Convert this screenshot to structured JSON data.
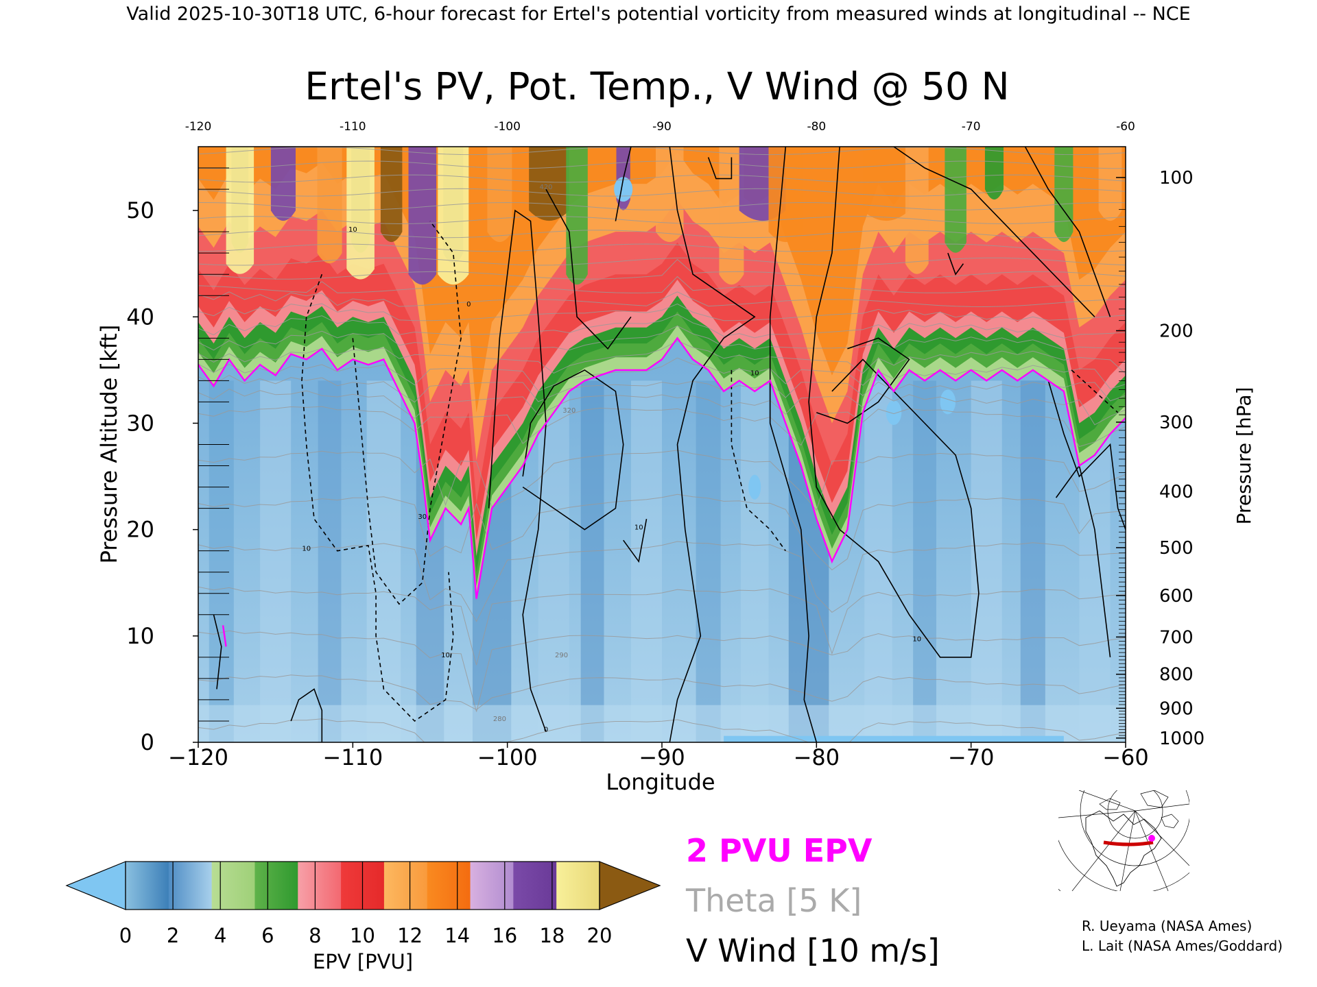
{
  "header_text": "Valid 2025-10-30T18 UTC, 6-hour forecast for Ertel's potential vorticity from measured winds at longitudinal -- NCE",
  "chart_data": {
    "type": "heatmap",
    "title": "Ertel's PV, Pot. Temp., V Wind @ 50 N",
    "xlabel": "Longitude",
    "ylabel_left": "Pressure Altitude [kft]",
    "ylabel_right": "Pressure [hPa]",
    "xlim": [
      -120,
      -60
    ],
    "ylim": [
      0,
      56
    ],
    "x_ticks": [
      -120,
      -110,
      -100,
      -90,
      -80,
      -70,
      -60
    ],
    "x_tick_labels": [
      "−120",
      "−110",
      "−100",
      "−90",
      "−80",
      "−70",
      "−60"
    ],
    "top_x_tick_labels": [
      "-120",
      "-110",
      "-100",
      "-90",
      "-80",
      "-70",
      "-60"
    ],
    "y_left_ticks": [
      0,
      10,
      20,
      30,
      40,
      50
    ],
    "y_right": [
      {
        "hPa": 100,
        "kft": 53.1,
        "label": "100"
      },
      {
        "hPa": 200,
        "kft": 38.7,
        "label": "200"
      },
      {
        "hPa": 300,
        "kft": 30.1,
        "label": "300"
      },
      {
        "hPa": 400,
        "kft": 23.6,
        "label": "400"
      },
      {
        "hPa": 500,
        "kft": 18.3,
        "label": "500"
      },
      {
        "hPa": 600,
        "kft": 13.8,
        "label": "600"
      },
      {
        "hPa": 700,
        "kft": 9.9,
        "label": "700"
      },
      {
        "hPa": 800,
        "kft": 6.4,
        "label": "800"
      },
      {
        "hPa": 900,
        "kft": 3.2,
        "label": "900"
      },
      {
        "hPa": 1000,
        "kft": 0.4,
        "label": "1000"
      }
    ],
    "tropopause_2pvu_kft": [
      [
        -120,
        35.5
      ],
      [
        -119,
        33.5
      ],
      [
        -118,
        36
      ],
      [
        -117,
        34
      ],
      [
        -116,
        35.5
      ],
      [
        -115,
        34.5
      ],
      [
        -114,
        36.5
      ],
      [
        -113,
        36
      ],
      [
        -112,
        37
      ],
      [
        -111,
        35
      ],
      [
        -110,
        36
      ],
      [
        -109,
        35.5
      ],
      [
        -108,
        36
      ],
      [
        -107,
        33
      ],
      [
        -106,
        30
      ],
      [
        -105.5,
        25
      ],
      [
        -105,
        19
      ],
      [
        -104,
        22
      ],
      [
        -103,
        20.5
      ],
      [
        -102.5,
        22
      ],
      [
        -102,
        13.5
      ],
      [
        -101,
        22
      ],
      [
        -100,
        24
      ],
      [
        -99,
        26
      ],
      [
        -98,
        29
      ],
      [
        -97,
        31
      ],
      [
        -96,
        33
      ],
      [
        -95,
        34
      ],
      [
        -94,
        34.5
      ],
      [
        -93,
        35
      ],
      [
        -92,
        35
      ],
      [
        -91,
        35
      ],
      [
        -90,
        36
      ],
      [
        -89,
        38
      ],
      [
        -88,
        36
      ],
      [
        -87,
        35
      ],
      [
        -86,
        33
      ],
      [
        -85,
        34
      ],
      [
        -84,
        33
      ],
      [
        -83,
        34
      ],
      [
        -82,
        30
      ],
      [
        -81,
        26
      ],
      [
        -80,
        21
      ],
      [
        -79,
        17
      ],
      [
        -78,
        20
      ],
      [
        -77,
        31
      ],
      [
        -76,
        35
      ],
      [
        -75,
        33
      ],
      [
        -74,
        35
      ],
      [
        -73,
        34
      ],
      [
        -72,
        35
      ],
      [
        -71,
        34
      ],
      [
        -70,
        35
      ],
      [
        -69,
        34
      ],
      [
        -68,
        35
      ],
      [
        -67,
        34
      ],
      [
        -66,
        35
      ],
      [
        -65,
        34
      ],
      [
        -64,
        33
      ],
      [
        -63,
        26
      ],
      [
        -62,
        27
      ],
      [
        -61,
        29
      ],
      [
        -60,
        30.5
      ]
    ],
    "troughs": [
      {
        "lon": -107.5,
        "depth_kft": 17
      },
      {
        "lon": -102,
        "depth_kft": 22
      },
      {
        "lon": -94.5,
        "depth_kft": 6
      },
      {
        "lon": -80.5,
        "depth_kft": 18
      },
      {
        "lon": -63.5,
        "depth_kft": 6
      }
    ],
    "colorbar": {
      "label": "EPV [PVU]",
      "min": 0,
      "max": 20,
      "ticks": [
        "0",
        "2",
        "4",
        "6",
        "8",
        "10",
        "12",
        "14",
        "16",
        "18",
        "20"
      ],
      "under_color": "#7fc6f2",
      "over_color": "#8b5a12",
      "bands": [
        [
          "#8ac0e0",
          "#3c7fb8"
        ],
        [
          "#4e8cc4",
          "#a8d0ec"
        ],
        [
          "#b8dd94",
          "#9fd078"
        ],
        [
          "#5fb24a",
          "#2f9a2f"
        ],
        [
          "#f7a0a8",
          "#f36870"
        ],
        [
          "#ef3a3a",
          "#e52a2a"
        ],
        [
          "#fcb860",
          "#f99a3c"
        ],
        [
          "#f98a20",
          "#f46c10"
        ],
        [
          "#d8b0e0",
          "#b08cd0"
        ],
        [
          "#7a4aa8",
          "#6a3a98"
        ],
        [
          "#f8f09a",
          "#e8d878"
        ]
      ]
    },
    "legend": [
      {
        "label": "2 PVU EPV",
        "color": "#ff00ff"
      },
      {
        "label": "Theta [5 K]",
        "color": "#aaaaaa"
      },
      {
        "label": "V Wind [10 m/s]",
        "color": "#000000"
      }
    ],
    "contour_labels": [
      "10",
      "10",
      "30",
      "10",
      "0",
      "0",
      "10",
      "10",
      "10",
      "420",
      "320",
      "290",
      "280"
    ]
  },
  "credits": [
    "R. Ueyama (NASA Ames)",
    "L. Lait (NASA Ames/Goddard)"
  ]
}
